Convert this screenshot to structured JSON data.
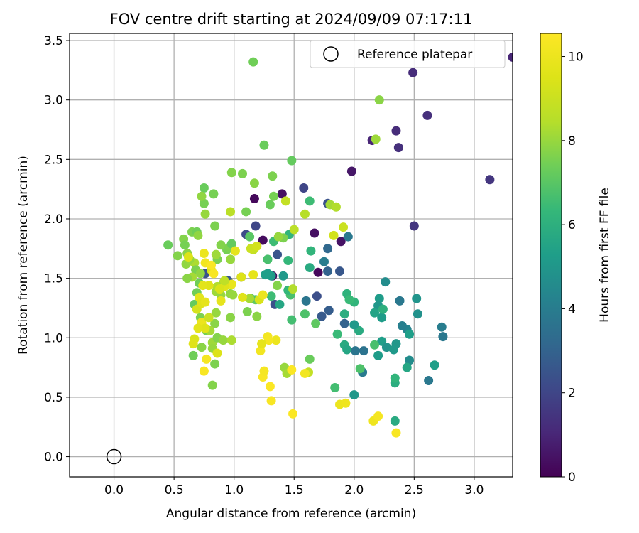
{
  "chart_data": {
    "type": "scatter",
    "title": "FOV centre drift starting at 2024/09/09 07:17:11",
    "xlabel": "Angular distance from reference (arcmin)",
    "ylabel": "Rotation from reference (arcmin)",
    "xlim": [
      -0.37,
      3.32
    ],
    "ylim": [
      -0.17,
      3.56
    ],
    "xticks": [
      0.0,
      0.5,
      1.0,
      1.5,
      2.0,
      2.5,
      3.0
    ],
    "xtick_labels": [
      "0.0",
      "0.5",
      "1.0",
      "1.5",
      "2.0",
      "2.5",
      "3.0"
    ],
    "yticks": [
      0.0,
      0.5,
      1.0,
      1.5,
      2.0,
      2.5,
      3.0,
      3.5
    ],
    "ytick_labels": [
      "0.0",
      "0.5",
      "1.0",
      "1.5",
      "2.0",
      "2.5",
      "3.0",
      "3.5"
    ],
    "grid": true,
    "legend": {
      "position": "top-right",
      "entries": [
        {
          "label": "Reference platepar",
          "marker": "open-circle"
        }
      ]
    },
    "reference_point": {
      "x": 0.0,
      "y": 0.0
    },
    "colorbar": {
      "label": "Hours from first FF file",
      "range": [
        0,
        10.55
      ],
      "ticks": [
        0,
        2,
        4,
        6,
        8,
        10
      ],
      "tick_labels": [
        "0",
        "2",
        "4",
        "6",
        "8",
        "10"
      ],
      "colormap": "viridis"
    },
    "points": [
      [
        1.17,
        2.17,
        0.2
      ],
      [
        1.4,
        2.21,
        0.4
      ],
      [
        1.24,
        1.82,
        0.3
      ],
      [
        1.32,
        1.52,
        0.3
      ],
      [
        1.67,
        1.88,
        0.4
      ],
      [
        1.7,
        1.55,
        0.2
      ],
      [
        1.89,
        1.81,
        0.5
      ],
      [
        1.98,
        2.4,
        0.6
      ],
      [
        3.32,
        3.36,
        1.0
      ],
      [
        2.49,
        3.23,
        1.2
      ],
      [
        2.61,
        2.87,
        1.3
      ],
      [
        2.35,
        2.74,
        1.2
      ],
      [
        2.37,
        2.6,
        1.3
      ],
      [
        2.15,
        2.66,
        1.0
      ],
      [
        3.13,
        2.33,
        1.5
      ],
      [
        2.5,
        1.94,
        1.5
      ],
      [
        1.58,
        2.26,
        2.0
      ],
      [
        1.18,
        1.94,
        2.0
      ],
      [
        1.1,
        1.87,
        2.2
      ],
      [
        1.36,
        1.7,
        2.5
      ],
      [
        1.06,
        1.51,
        1.8
      ],
      [
        0.76,
        1.54,
        2.4
      ],
      [
        0.95,
        1.48,
        2.6
      ],
      [
        1.34,
        1.28,
        2.3
      ],
      [
        1.69,
        1.35,
        2.3
      ],
      [
        1.79,
        1.23,
        2.8
      ],
      [
        1.73,
        1.18,
        2.7
      ],
      [
        1.92,
        1.12,
        3.0
      ],
      [
        1.88,
        1.56,
        2.6
      ],
      [
        1.78,
        1.56,
        3.0
      ],
      [
        1.78,
        1.75,
        3.2
      ],
      [
        1.78,
        2.13,
        2.4
      ],
      [
        1.6,
        1.31,
        3.7
      ],
      [
        1.75,
        1.64,
        4.0
      ],
      [
        1.95,
        1.85,
        3.8
      ],
      [
        2.01,
        0.89,
        3.7
      ],
      [
        2.07,
        0.71,
        3.9
      ],
      [
        2.08,
        0.89,
        3.6
      ],
      [
        2.62,
        0.64,
        3.8
      ],
      [
        2.74,
        1.01,
        3.8
      ],
      [
        2.73,
        1.09,
        4.0
      ],
      [
        2.67,
        0.77,
        5.3
      ],
      [
        2.46,
        0.81,
        4.6
      ],
      [
        2.44,
        1.07,
        4.3
      ],
      [
        2.4,
        1.1,
        4.1
      ],
      [
        2.38,
        1.31,
        3.8
      ],
      [
        2.52,
        1.33,
        4.9
      ],
      [
        2.53,
        1.2,
        4.8
      ],
      [
        2.26,
        1.47,
        4.6
      ],
      [
        2.21,
        1.33,
        5.2
      ],
      [
        2.2,
        1.27,
        5.0
      ],
      [
        2.23,
        1.17,
        5.2
      ],
      [
        2.23,
        0.97,
        5.3
      ],
      [
        2.27,
        0.92,
        4.9
      ],
      [
        2.2,
        0.85,
        5.2
      ],
      [
        2.35,
        0.95,
        5.0
      ],
      [
        2.33,
        0.9,
        5.1
      ],
      [
        2.46,
        1.03,
        5.3
      ],
      [
        2.44,
        0.75,
        5.6
      ],
      [
        2.34,
        0.62,
        5.9
      ],
      [
        2.34,
        0.66,
        6.2
      ],
      [
        2.34,
        0.3,
        5.8
      ],
      [
        2.0,
        0.52,
        5.0
      ],
      [
        2.04,
        1.06,
        5.8
      ],
      [
        2.0,
        1.11,
        5.1
      ],
      [
        2.0,
        1.3,
        6.2
      ],
      [
        2.17,
        1.21,
        5.5
      ],
      [
        2.24,
        1.24,
        6.0
      ],
      [
        1.94,
        1.37,
        6.1
      ],
      [
        1.92,
        1.2,
        5.9
      ],
      [
        1.96,
        1.32,
        6.4
      ],
      [
        1.92,
        0.94,
        5.8
      ],
      [
        1.94,
        0.9,
        5.6
      ],
      [
        1.86,
        1.03,
        6.4
      ],
      [
        2.05,
        0.74,
        6.8
      ],
      [
        2.17,
        0.94,
        6.7
      ],
      [
        1.84,
        0.58,
        6.6
      ],
      [
        1.59,
        1.2,
        6.8
      ],
      [
        1.48,
        1.15,
        6.6
      ],
      [
        1.47,
        1.36,
        6.7
      ],
      [
        1.41,
        1.52,
        5.1
      ],
      [
        1.38,
        1.28,
        5.6
      ],
      [
        1.31,
        1.52,
        5.2
      ],
      [
        1.28,
        1.54,
        5.3
      ],
      [
        1.45,
        1.4,
        6.3
      ],
      [
        1.45,
        1.65,
        6.3
      ],
      [
        1.46,
        1.87,
        6.2
      ],
      [
        1.63,
        1.59,
        5.8
      ],
      [
        1.64,
        1.73,
        6.2
      ],
      [
        1.63,
        2.15,
        6.5
      ],
      [
        1.68,
        1.12,
        7.1
      ],
      [
        1.63,
        0.82,
        7.3
      ],
      [
        1.26,
        1.53,
        5.3
      ],
      [
        1.31,
        1.35,
        6.5
      ],
      [
        1.28,
        1.66,
        6.7
      ],
      [
        1.33,
        1.81,
        6.5
      ],
      [
        1.13,
        1.85,
        7.0
      ],
      [
        1.18,
        1.32,
        7.2
      ],
      [
        1.14,
        1.33,
        6.9
      ],
      [
        1.3,
        2.12,
        7.3
      ],
      [
        1.33,
        2.19,
        7.5
      ],
      [
        1.48,
        2.49,
        7.2
      ],
      [
        1.36,
        1.44,
        7.7
      ],
      [
        1.49,
        1.41,
        8.4
      ],
      [
        1.41,
        1.84,
        7.6
      ],
      [
        1.37,
        1.85,
        8.0
      ],
      [
        1.32,
        2.36,
        7.6
      ],
      [
        1.25,
        2.62,
        7.3
      ],
      [
        1.16,
        3.32,
        7.4
      ],
      [
        1.07,
        2.38,
        7.6
      ],
      [
        1.17,
        2.3,
        7.8
      ],
      [
        1.1,
        2.06,
        7.5
      ],
      [
        0.98,
        2.39,
        7.7
      ],
      [
        0.97,
        2.06,
        8.6
      ],
      [
        0.84,
        1.94,
        7.6
      ],
      [
        0.83,
        2.21,
        7.5
      ],
      [
        0.75,
        2.26,
        7.3
      ],
      [
        0.75,
        2.13,
        7.5
      ],
      [
        0.76,
        2.04,
        8.0
      ],
      [
        0.73,
        2.19,
        7.9
      ],
      [
        0.65,
        1.89,
        7.6
      ],
      [
        0.69,
        1.89,
        7.4
      ],
      [
        0.7,
        1.86,
        7.9
      ],
      [
        0.58,
        1.83,
        7.7
      ],
      [
        0.59,
        1.78,
        7.5
      ],
      [
        0.45,
        1.78,
        7.3
      ],
      [
        0.53,
        1.69,
        7.7
      ],
      [
        0.61,
        1.71,
        7.8
      ],
      [
        0.67,
        1.63,
        8.3
      ],
      [
        0.6,
        1.62,
        7.9
      ],
      [
        0.63,
        1.66,
        8.0
      ],
      [
        0.68,
        1.57,
        7.6
      ],
      [
        0.72,
        1.54,
        7.9
      ],
      [
        0.65,
        1.51,
        8.2
      ],
      [
        0.61,
        1.5,
        7.8
      ],
      [
        0.71,
        1.46,
        7.4
      ],
      [
        0.69,
        1.38,
        7.4
      ],
      [
        0.85,
        1.39,
        8.1
      ],
      [
        0.89,
        1.36,
        8.0
      ],
      [
        0.86,
        1.43,
        8.4
      ],
      [
        0.91,
        1.46,
        8.2
      ],
      [
        0.97,
        1.37,
        7.9
      ],
      [
        0.99,
        1.36,
        8.0
      ],
      [
        0.94,
        1.74,
        7.5
      ],
      [
        0.89,
        1.78,
        7.7
      ],
      [
        0.96,
        1.76,
        7.6
      ],
      [
        0.98,
        1.79,
        7.2
      ],
      [
        0.97,
        1.66,
        8.0
      ],
      [
        0.86,
        1.66,
        7.6
      ],
      [
        0.85,
        1.7,
        8.1
      ],
      [
        0.97,
        1.17,
        7.8
      ],
      [
        0.85,
        1.21,
        8.0
      ],
      [
        0.84,
        1.12,
        7.8
      ],
      [
        0.77,
        1.06,
        7.5
      ],
      [
        0.72,
        1.17,
        7.6
      ],
      [
        0.8,
        1.06,
        8.2
      ],
      [
        0.82,
        0.96,
        8.1
      ],
      [
        0.82,
        0.91,
        8.0
      ],
      [
        0.86,
        1.0,
        7.7
      ],
      [
        0.91,
        0.98,
        8.0
      ],
      [
        0.98,
        0.98,
        8.3
      ],
      [
        0.73,
        0.92,
        7.8
      ],
      [
        0.84,
        0.78,
        7.6
      ],
      [
        0.82,
        0.6,
        7.7
      ],
      [
        0.66,
        0.85,
        7.4
      ],
      [
        0.67,
        1.28,
        7.2
      ],
      [
        1.11,
        1.22,
        7.6
      ],
      [
        1.13,
        1.33,
        8.2
      ],
      [
        1.19,
        1.18,
        7.8
      ],
      [
        1.42,
        0.75,
        8.0
      ],
      [
        1.44,
        0.7,
        8.2
      ],
      [
        1.62,
        0.71,
        8.8
      ],
      [
        1.59,
        2.04,
        8.5
      ],
      [
        1.43,
        2.15,
        8.8
      ],
      [
        1.5,
        1.91,
        8.6
      ],
      [
        1.8,
        2.12,
        8.2
      ],
      [
        1.85,
        2.1,
        8.4
      ],
      [
        2.18,
        2.67,
        8.1
      ],
      [
        2.21,
        3.0,
        7.8
      ],
      [
        1.91,
        1.93,
        9.0
      ],
      [
        1.83,
        1.86,
        9.2
      ],
      [
        1.16,
        1.74,
        8.8
      ],
      [
        1.14,
        1.75,
        9.0
      ],
      [
        1.19,
        1.77,
        9.2
      ],
      [
        1.06,
        1.51,
        9.5
      ],
      [
        1.07,
        1.34,
        9.6
      ],
      [
        1.16,
        1.53,
        9.8
      ],
      [
        1.21,
        1.32,
        9.4
      ],
      [
        1.24,
        1.36,
        10.0
      ],
      [
        0.98,
        1.45,
        9.9
      ],
      [
        0.92,
        1.43,
        9.6
      ],
      [
        0.89,
        1.31,
        9.8
      ],
      [
        0.88,
        1.41,
        9.4
      ],
      [
        0.81,
        1.57,
        9.4
      ],
      [
        0.79,
        1.44,
        9.6
      ],
      [
        0.74,
        1.44,
        9.7
      ],
      [
        0.71,
        1.34,
        9.7
      ],
      [
        0.69,
        1.24,
        9.3
      ],
      [
        0.73,
        1.29,
        9.6
      ],
      [
        0.76,
        1.3,
        9.8
      ],
      [
        0.73,
        1.13,
        10.0
      ],
      [
        0.76,
        1.08,
        9.6
      ],
      [
        0.7,
        1.08,
        9.7
      ],
      [
        0.67,
        0.99,
        9.4
      ],
      [
        0.66,
        0.95,
        9.6
      ],
      [
        0.75,
        0.72,
        10.4
      ],
      [
        0.77,
        0.82,
        10.3
      ],
      [
        0.86,
        0.87,
        9.5
      ],
      [
        0.75,
        1.71,
        10.0
      ],
      [
        0.76,
        1.63,
        10.2
      ],
      [
        0.81,
        1.61,
        10.5
      ],
      [
        0.83,
        1.54,
        10.4
      ],
      [
        1.01,
        1.73,
        9.8
      ],
      [
        1.28,
        1.01,
        10.2
      ],
      [
        1.35,
        0.98,
        10.0
      ],
      [
        1.29,
        0.98,
        10.3
      ],
      [
        1.22,
        0.89,
        10.2
      ],
      [
        1.23,
        0.95,
        9.8
      ],
      [
        1.24,
        0.67,
        10.4
      ],
      [
        1.25,
        0.72,
        10.3
      ],
      [
        1.3,
        0.59,
        10.5
      ],
      [
        1.31,
        0.47,
        10.4
      ],
      [
        1.48,
        0.73,
        10.5
      ],
      [
        1.59,
        0.7,
        10.2
      ],
      [
        1.49,
        0.36,
        10.5
      ],
      [
        1.88,
        0.44,
        10.0
      ],
      [
        1.93,
        0.45,
        10.1
      ],
      [
        2.16,
        0.3,
        10.1
      ],
      [
        2.2,
        0.34,
        10.3
      ],
      [
        2.35,
        0.2,
        10.4
      ],
      [
        0.62,
        1.68,
        9.5
      ],
      [
        0.79,
        1.17,
        9.0
      ],
      [
        0.92,
        1.48,
        8.7
      ]
    ]
  }
}
